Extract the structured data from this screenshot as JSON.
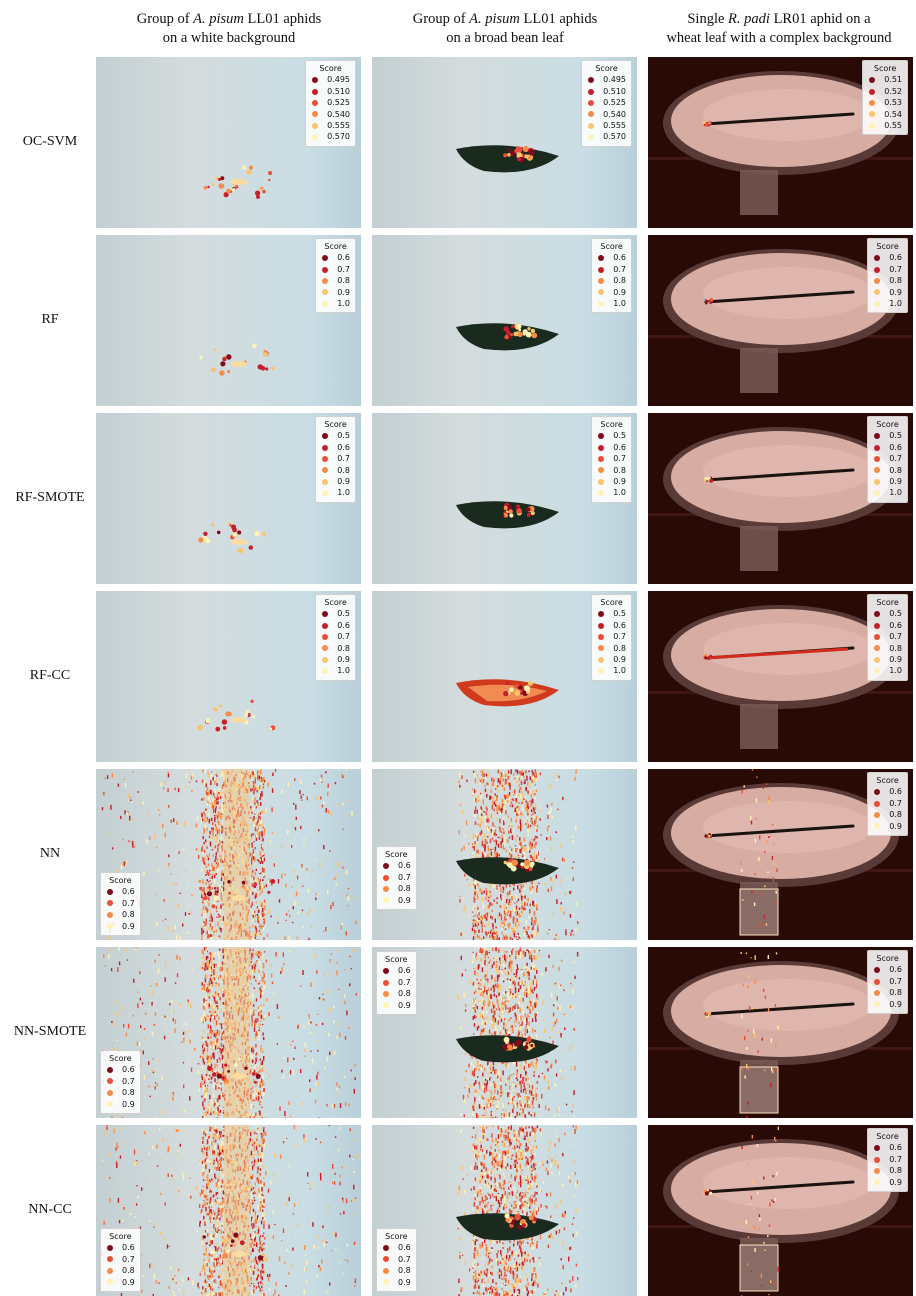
{
  "columns": [
    {
      "line1_pre": "Group of ",
      "line1_em": "A. pisum",
      "line1_post": " LL01 aphids",
      "line2": "on a white background"
    },
    {
      "line1_pre": "Group of ",
      "line1_em": "A. pisum",
      "line1_post": " LL01 aphids",
      "line2": "on a broad bean leaf"
    },
    {
      "line1_pre": "Single ",
      "line1_em": "R. padi",
      "line1_post": " LR01 aphid on a",
      "line2": "wheat leaf with a complex background"
    }
  ],
  "rows": [
    {
      "label": "OC-SVM"
    },
    {
      "label": "RF"
    },
    {
      "label": "RF-SMOTE"
    },
    {
      "label": "RF-CC"
    },
    {
      "label": "NN"
    },
    {
      "label": "NN-SMOTE"
    },
    {
      "label": "NN-CC"
    }
  ],
  "legend_title": "Score",
  "legends": {
    "ocsvm_a": [
      "0.495",
      "0.510",
      "0.525",
      "0.540",
      "0.555",
      "0.570"
    ],
    "ocsvm_c": [
      "0.51",
      "0.52",
      "0.53",
      "0.54",
      "0.55"
    ],
    "s5": [
      "0.6",
      "0.7",
      "0.8",
      "0.9",
      "1.0"
    ],
    "s6": [
      "0.5",
      "0.6",
      "0.7",
      "0.8",
      "0.9",
      "1.0"
    ],
    "s4": [
      "0.6",
      "0.7",
      "0.8",
      "0.9"
    ]
  },
  "colors": {
    "score_scale": [
      "#7f0a1c",
      "#c81d2a",
      "#ea4e34",
      "#f88b45",
      "#fcc46c",
      "#fef3b4"
    ],
    "white_bg": "#c9d8dc",
    "leaf": "#1b2a1f",
    "dark_bg": "#2a0a07",
    "plate": "#d7aca3"
  }
}
